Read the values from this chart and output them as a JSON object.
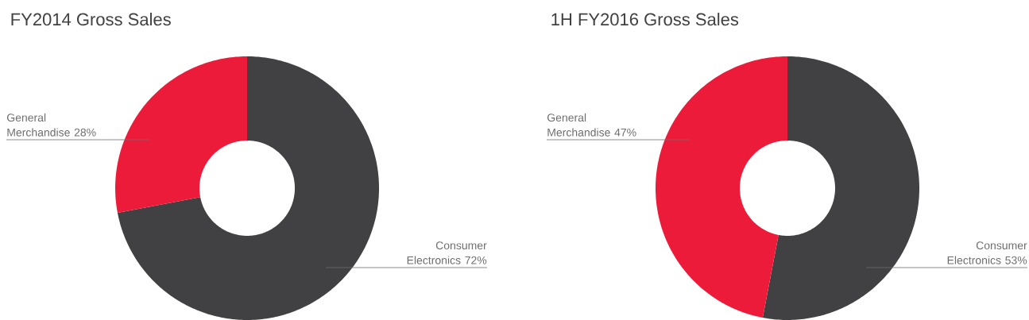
{
  "chart_data": [
    {
      "type": "donut",
      "title": "FY2014 Gross Sales",
      "categories": [
        "Consumer Electronics",
        "General Merchandise"
      ],
      "values": [
        72,
        28
      ],
      "value_labels": [
        "72%",
        "28%"
      ],
      "colors": [
        "#414042",
        "#ed1b3a"
      ]
    },
    {
      "type": "donut",
      "title": "1H FY2016 Gross Sales",
      "categories": [
        "Consumer Electronics",
        "General Merchandise"
      ],
      "values": [
        53,
        47
      ],
      "value_labels": [
        "53%",
        "47%"
      ],
      "colors": [
        "#414042",
        "#ed1b3a"
      ]
    }
  ]
}
